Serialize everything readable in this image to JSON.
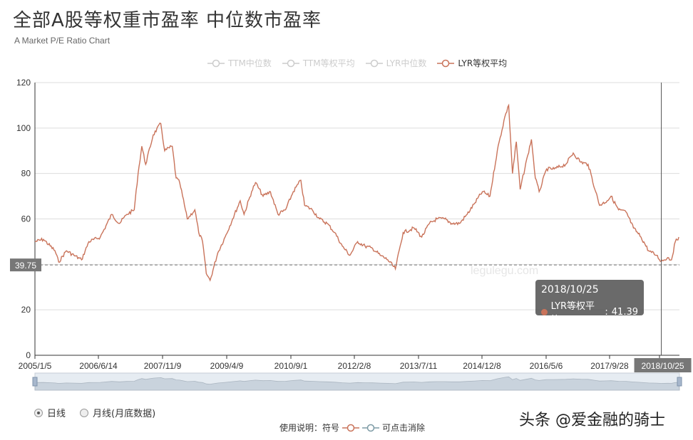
{
  "header": {
    "title": "全部A股等权重市盈率 中位数市盈率",
    "subtitle": "A Market P/E Ratio Chart"
  },
  "legend": [
    {
      "label": "TTM中位数",
      "active": false,
      "color": "#cccccc"
    },
    {
      "label": "TTM等权平均",
      "active": false,
      "color": "#cccccc"
    },
    {
      "label": "LYR中位数",
      "active": false,
      "color": "#cccccc"
    },
    {
      "label": "LYR等权平均",
      "active": true,
      "color": "#c9735a"
    }
  ],
  "controls": {
    "daily_label": "日线",
    "monthly_label": "月线(月底数据)",
    "instructions_prefix": "使用说明：符号",
    "instructions_suffix": "可点击消除"
  },
  "tooltip": {
    "date": "2018/10/25",
    "series": "LYR等权平均",
    "value_text": "41.39"
  },
  "markers": {
    "y_reference_label": "39.75",
    "x_pointer_label": "2018/10/25",
    "watermark": "legulegu.com"
  },
  "footer_watermark": "头条 @爱金融的骑士",
  "colors": {
    "line": "#c9735a",
    "accent": "#7d9ba5"
  },
  "chart_data": {
    "type": "line",
    "x_ticks": [
      "2005/1/5",
      "2006/6/14",
      "2007/11/9",
      "2009/4/9",
      "2010/9/1",
      "2012/2/8",
      "2013/7/11",
      "2014/12/8",
      "2016/5/6",
      "2017/9/28",
      "2018/10/25"
    ],
    "x_tick_last_partial": "/6",
    "ylim": [
      0,
      120
    ],
    "y_ticks": [
      0,
      20,
      40,
      60,
      80,
      100,
      120
    ],
    "grid": true,
    "reference_value": 39.75,
    "series": [
      {
        "name": "LYR等权平均",
        "points": [
          [
            "2005/1/5",
            50
          ],
          [
            "2005/3",
            51
          ],
          [
            "2005/6",
            46
          ],
          [
            "2005/7",
            41
          ],
          [
            "2005/9",
            46
          ],
          [
            "2005/11",
            44
          ],
          [
            "2006/1",
            42
          ],
          [
            "2006/3",
            50
          ],
          [
            "2006/6",
            52
          ],
          [
            "2006/9",
            62
          ],
          [
            "2006/11",
            58
          ],
          [
            "2007/1",
            62
          ],
          [
            "2007/3",
            64
          ],
          [
            "2007/4",
            80
          ],
          [
            "2007/5",
            92
          ],
          [
            "2007/6",
            84
          ],
          [
            "2007/8",
            97
          ],
          [
            "2007/10",
            102
          ],
          [
            "2007/11",
            90
          ],
          [
            "2008/1",
            92
          ],
          [
            "2008/2",
            78
          ],
          [
            "2008/3",
            76
          ],
          [
            "2008/5",
            60
          ],
          [
            "2008/7",
            64
          ],
          [
            "2008/8",
            54
          ],
          [
            "2008/9",
            50
          ],
          [
            "2008/10",
            36
          ],
          [
            "2008/11",
            33
          ],
          [
            "2009/1",
            45
          ],
          [
            "2009/3",
            52
          ],
          [
            "2009/5",
            60
          ],
          [
            "2009/7",
            68
          ],
          [
            "2009/8",
            62
          ],
          [
            "2009/10",
            72
          ],
          [
            "2009/11",
            76
          ],
          [
            "2010/1",
            70
          ],
          [
            "2010/3",
            72
          ],
          [
            "2010/5",
            62
          ],
          [
            "2010/7",
            64
          ],
          [
            "2010/9",
            72
          ],
          [
            "2010/11",
            77
          ],
          [
            "2010/12",
            66
          ],
          [
            "2011/2",
            64
          ],
          [
            "2011/4",
            60
          ],
          [
            "2011/6",
            58
          ],
          [
            "2011/8",
            54
          ],
          [
            "2011/10",
            48
          ],
          [
            "2011/12",
            44
          ],
          [
            "2012/2",
            50
          ],
          [
            "2012/4",
            48
          ],
          [
            "2012/6",
            47
          ],
          [
            "2012/8",
            44
          ],
          [
            "2012/10",
            42
          ],
          [
            "2012/12",
            38
          ],
          [
            "2013/2",
            54
          ],
          [
            "2013/5",
            56
          ],
          [
            "2013/7",
            52
          ],
          [
            "2013/9",
            58
          ],
          [
            "2013/11",
            60
          ],
          [
            "2014/1",
            60
          ],
          [
            "2014/3",
            58
          ],
          [
            "2014/5",
            58
          ],
          [
            "2014/7",
            62
          ],
          [
            "2014/9",
            67
          ],
          [
            "2014/11",
            72
          ],
          [
            "2015/1",
            70
          ],
          [
            "2015/3",
            90
          ],
          [
            "2015/5",
            105
          ],
          [
            "2015/6",
            110
          ],
          [
            "2015/7",
            80
          ],
          [
            "2015/8",
            94
          ],
          [
            "2015/9",
            73
          ],
          [
            "2015/11",
            88
          ],
          [
            "2015/12",
            95
          ],
          [
            "2016/1",
            78
          ],
          [
            "2016/2",
            72
          ],
          [
            "2016/4",
            82
          ],
          [
            "2016/6",
            82
          ],
          [
            "2016/9",
            84
          ],
          [
            "2016/11",
            89
          ],
          [
            "2017/1",
            85
          ],
          [
            "2017/3",
            84
          ],
          [
            "2017/5",
            72
          ],
          [
            "2017/6",
            66
          ],
          [
            "2017/8",
            68
          ],
          [
            "2017/9",
            70
          ],
          [
            "2017/11",
            64
          ],
          [
            "2018/1",
            63
          ],
          [
            "2018/3",
            56
          ],
          [
            "2018/5",
            52
          ],
          [
            "2018/7",
            46
          ],
          [
            "2018/9",
            44
          ],
          [
            "2018/10/25",
            41.39
          ],
          [
            "2018/12",
            43
          ],
          [
            "2019/1",
            42
          ],
          [
            "2019/2",
            50
          ],
          [
            "2019/3",
            52
          ]
        ]
      }
    ]
  }
}
